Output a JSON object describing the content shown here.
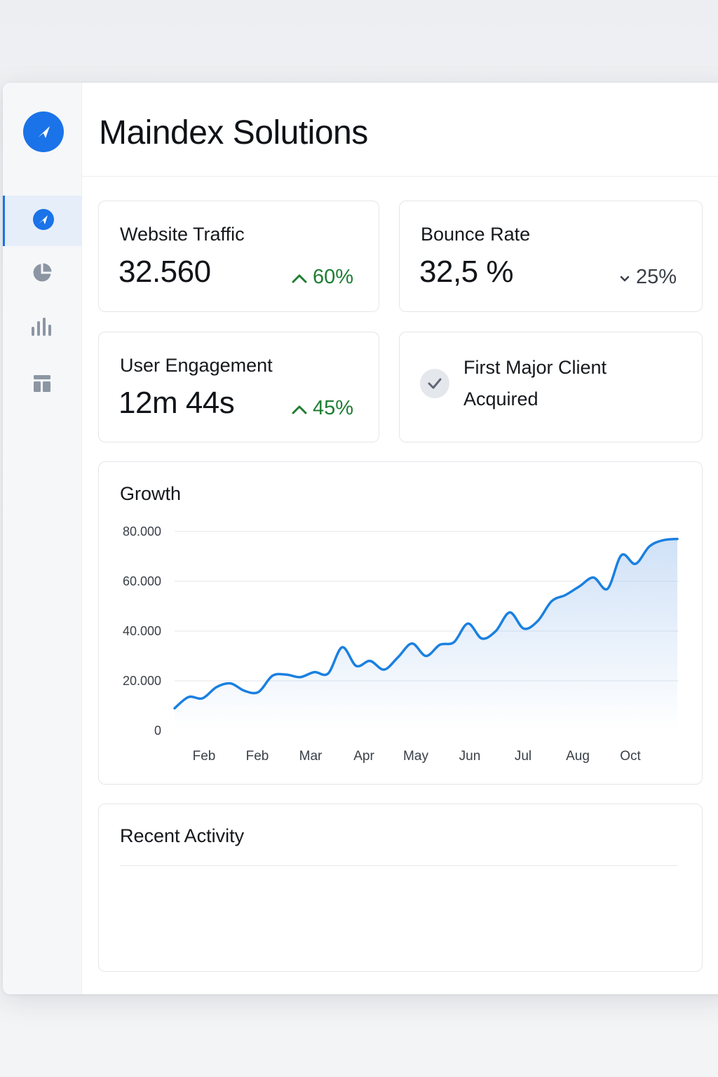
{
  "app": {
    "title": "Maindex Solutions",
    "accent_color": "#1a73e8"
  },
  "sidebar": {
    "logo_icon": "compass-icon",
    "items": [
      {
        "icon": "compass-icon",
        "active": true
      },
      {
        "icon": "pie-chart-icon",
        "active": false
      },
      {
        "icon": "bar-chart-icon",
        "active": false
      },
      {
        "icon": "layout-icon",
        "active": false
      }
    ]
  },
  "metrics": {
    "traffic": {
      "label": "Website Traffic",
      "value": "32.560",
      "delta": "60%",
      "trend": "up"
    },
    "bounce": {
      "label": "Bounce Rate",
      "value": "32,5 %",
      "delta": "25%",
      "trend": "down"
    },
    "engagement": {
      "label": "User Engagement",
      "value": "12m 44s",
      "delta": "45%",
      "trend": "up"
    },
    "milestone": {
      "line1": "First Major Client",
      "line2": "Acquired",
      "icon": "check-icon"
    }
  },
  "growth": {
    "title": "Growth"
  },
  "activity": {
    "title": "Recent Activity"
  },
  "colors": {
    "up": "#1e7d32",
    "down": "#3a4048",
    "line": "#1a80e0"
  },
  "chart_data": {
    "type": "area",
    "title": "Growth",
    "xlabel": "",
    "ylabel": "",
    "ylim": [
      0,
      80000
    ],
    "y_ticks": [
      "0",
      "20.000",
      "40.000",
      "60.000",
      "80.000"
    ],
    "y_tick_values": [
      0,
      20000,
      40000,
      60000,
      80000
    ],
    "x_ticks": [
      "Feb",
      "Feb",
      "Mar",
      "Apr",
      "May",
      "Jun",
      "Jul",
      "Aug",
      "Oct"
    ],
    "grid": true,
    "legend": "none",
    "series": [
      {
        "x": [
          0,
          0.25,
          0.5,
          0.75,
          1,
          1.25,
          1.5,
          1.75,
          2,
          2.25,
          2.5,
          2.75,
          3,
          3.25,
          3.5,
          3.75,
          4,
          4.25,
          4.5,
          4.75,
          5,
          5.25,
          5.5,
          5.75,
          6,
          6.25,
          6.5,
          6.75,
          7,
          7.25,
          7.5,
          7.75,
          8,
          8.25,
          8.5,
          8.75,
          9
        ],
        "values": [
          9000,
          13500,
          13000,
          17500,
          19000,
          16000,
          15500,
          22000,
          22500,
          21500,
          23500,
          23000,
          33500,
          26000,
          28000,
          24500,
          29500,
          35000,
          30000,
          34500,
          35500,
          43000,
          37000,
          40000,
          47500,
          41000,
          44000,
          52000,
          54500,
          58000,
          61500,
          57000,
          70500,
          67000,
          74000,
          76500,
          77000
        ]
      }
    ]
  }
}
